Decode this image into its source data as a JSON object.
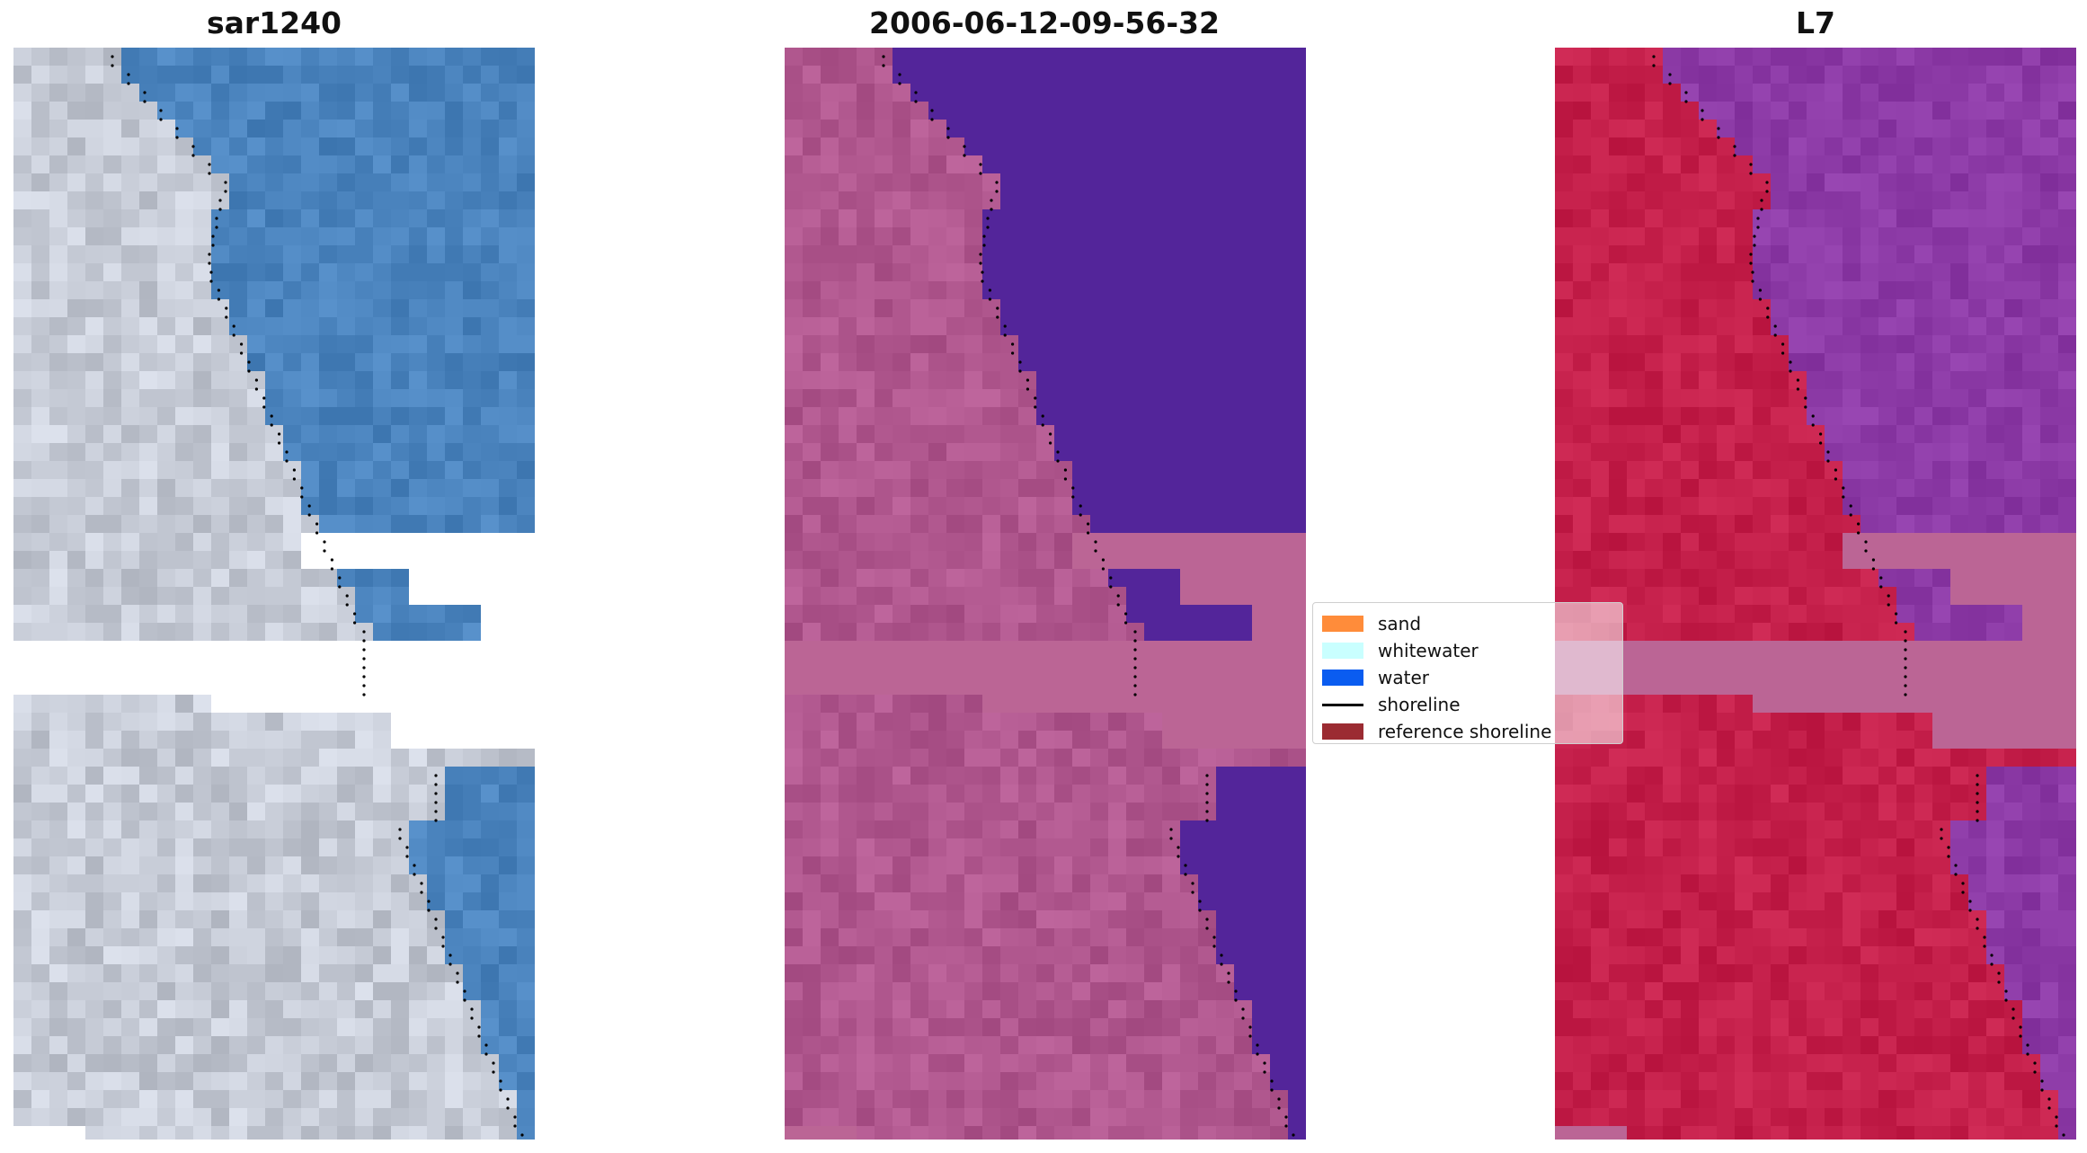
{
  "panels": [
    {
      "title": "sar1240",
      "kind": "rgb"
    },
    {
      "title": "2006-06-12-09-56-32",
      "kind": "classified"
    },
    {
      "title": "L7",
      "kind": "index"
    }
  ],
  "legend": {
    "items": [
      {
        "label": "sand",
        "type": "patch",
        "color": "#ff8c3a"
      },
      {
        "label": "whitewater",
        "type": "patch",
        "color": "#c9ffff"
      },
      {
        "label": "water",
        "type": "patch",
        "color": "#0a5cf0"
      },
      {
        "label": "shoreline",
        "type": "line",
        "color": "#000000"
      },
      {
        "label": "reference shoreline",
        "type": "patch",
        "color": "#9b2b32"
      }
    ]
  },
  "colors": {
    "sea_rgb": "#4a83bd",
    "land_rgb": "#c6cbd6",
    "sea_class": "#53259a",
    "land_class": "#b0578e",
    "nodata_band": "#bb6595",
    "land_index": "#c41f4a",
    "sea_index": "#8c3aa6"
  }
}
